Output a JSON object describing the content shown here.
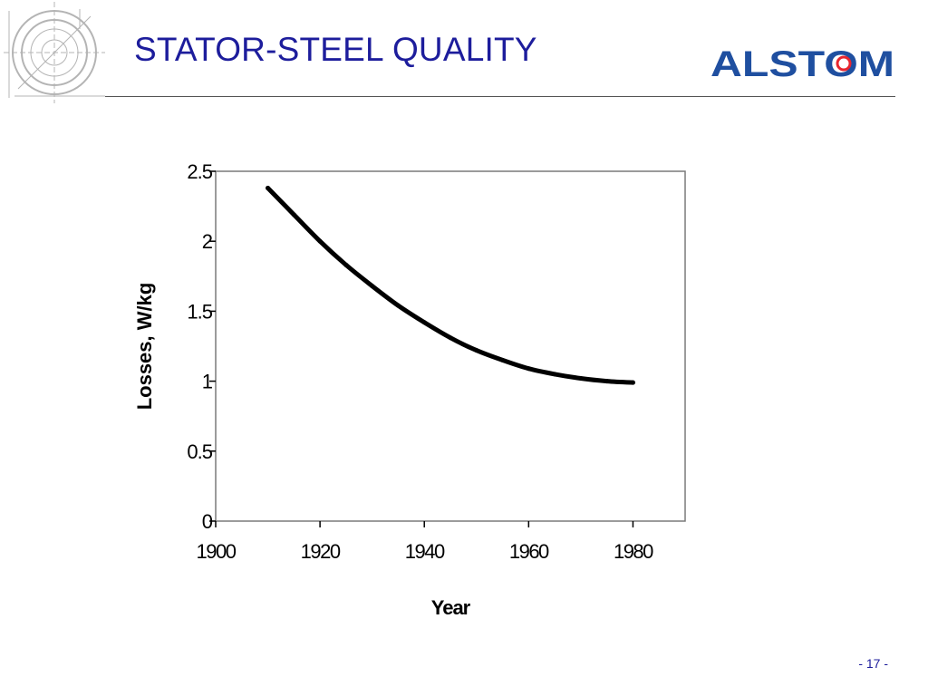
{
  "slide": {
    "title": "STATOR-STEEL QUALITY",
    "logo_text": "ALSTOM",
    "page_number": "- 17 -"
  },
  "colors": {
    "title": "#1d1d9c",
    "logo": "#1f4fa0",
    "logo_ring": "#e8262f",
    "curve": "#000000"
  },
  "chart_data": {
    "type": "line",
    "title": "",
    "xlabel": "Year",
    "ylabel": "Losses, W/kg",
    "xlim": [
      1900,
      1990
    ],
    "ylim": [
      0,
      2.5
    ],
    "x_ticks": [
      "1900",
      "1920",
      "1940",
      "1960",
      "1980"
    ],
    "y_ticks": [
      "2.5",
      "2",
      "1.5",
      "1",
      "0.5",
      "0"
    ],
    "grid": false,
    "legend": "none",
    "series": [
      {
        "x": [
          1910,
          1915,
          1920,
          1925,
          1930,
          1935,
          1940,
          1945,
          1950,
          1955,
          1960,
          1965,
          1970,
          1975,
          1980
        ],
        "values": [
          2.38,
          2.19,
          2.0,
          1.83,
          1.68,
          1.54,
          1.42,
          1.31,
          1.22,
          1.15,
          1.09,
          1.05,
          1.02,
          1.0,
          0.99
        ]
      }
    ]
  }
}
